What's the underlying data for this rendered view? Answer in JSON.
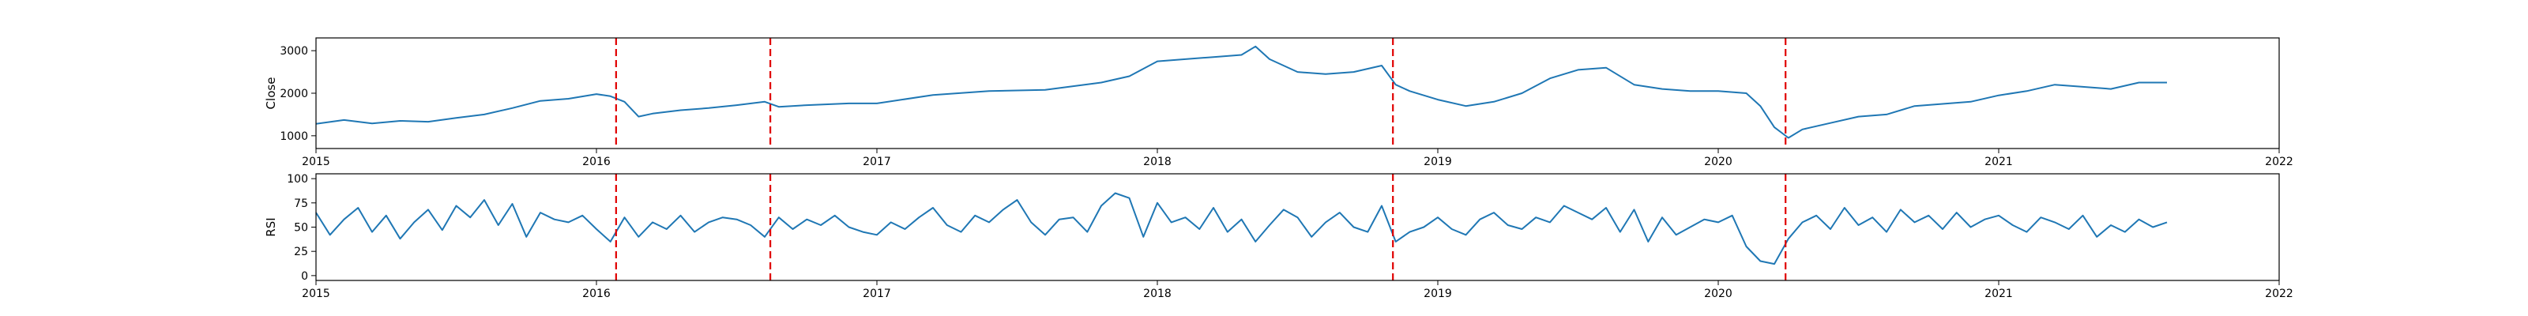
{
  "chart_data": [
    {
      "type": "line",
      "title": "",
      "xlabel": "",
      "ylabel": "Close",
      "xlim": [
        2015.0,
        2022.0
      ],
      "ylim": [
        700,
        3300
      ],
      "x_ticks": [
        2015,
        2016,
        2017,
        2018,
        2019,
        2020,
        2021,
        2022
      ],
      "x_tick_labels": [
        "2015",
        "2016",
        "2017",
        "2018",
        "2019",
        "2020",
        "2021",
        "2022"
      ],
      "y_ticks": [
        1000,
        2000,
        3000
      ],
      "y_tick_labels": [
        "1000",
        "2000",
        "3000"
      ],
      "grid": false,
      "event_lines": [
        2016.07,
        2016.62,
        2018.84,
        2020.24
      ],
      "event_color": "#e00000",
      "line_color": "#1f77b4",
      "series": [
        {
          "x": [
            2015.0,
            2015.1,
            2015.2,
            2015.3,
            2015.4,
            2015.5,
            2015.6,
            2015.7,
            2015.8,
            2015.9,
            2016.0,
            2016.05,
            2016.1,
            2016.15,
            2016.2,
            2016.3,
            2016.4,
            2016.5,
            2016.6,
            2016.65,
            2016.75,
            2016.9,
            2017.0,
            2017.2,
            2017.4,
            2017.6,
            2017.8,
            2017.9,
            2018.0,
            2018.1,
            2018.2,
            2018.3,
            2018.35,
            2018.4,
            2018.5,
            2018.6,
            2018.7,
            2018.8,
            2018.85,
            2018.9,
            2019.0,
            2019.1,
            2019.2,
            2019.3,
            2019.4,
            2019.5,
            2019.6,
            2019.7,
            2019.8,
            2019.9,
            2020.0,
            2020.1,
            2020.15,
            2020.2,
            2020.25,
            2020.3,
            2020.4,
            2020.5,
            2020.6,
            2020.7,
            2020.8,
            2020.9,
            2021.0,
            2021.1,
            2021.2,
            2021.3,
            2021.4,
            2021.5,
            2021.6
          ],
          "y": [
            1280,
            1370,
            1290,
            1350,
            1330,
            1420,
            1500,
            1650,
            1820,
            1870,
            1980,
            1930,
            1800,
            1450,
            1520,
            1600,
            1650,
            1720,
            1800,
            1680,
            1720,
            1760,
            1760,
            1960,
            2050,
            2080,
            2250,
            2400,
            2750,
            2800,
            2850,
            2900,
            3100,
            2800,
            2500,
            2450,
            2500,
            2650,
            2200,
            2050,
            1850,
            1700,
            1800,
            2000,
            2350,
            2550,
            2600,
            2200,
            2100,
            2050,
            2050,
            2000,
            1700,
            1200,
            950,
            1150,
            1300,
            1450,
            1500,
            1700,
            1750,
            1800,
            1950,
            2050,
            2200,
            2150,
            2100,
            2250,
            2250
          ]
        }
      ]
    },
    {
      "type": "line",
      "title": "",
      "xlabel": "",
      "ylabel": "RSI",
      "xlim": [
        2015.0,
        2022.0
      ],
      "ylim": [
        -5,
        105
      ],
      "x_ticks": [
        2015,
        2016,
        2017,
        2018,
        2019,
        2020,
        2021,
        2022
      ],
      "x_tick_labels": [
        "2015",
        "2016",
        "2017",
        "2018",
        "2019",
        "2020",
        "2021",
        "2022"
      ],
      "y_ticks": [
        0,
        25,
        50,
        75,
        100
      ],
      "y_tick_labels": [
        "0",
        "25",
        "50",
        "75",
        "100"
      ],
      "grid": false,
      "event_lines": [
        2016.07,
        2016.62,
        2018.84,
        2020.24
      ],
      "event_color": "#e00000",
      "line_color": "#1f77b4",
      "series": [
        {
          "x": [
            2015.0,
            2015.05,
            2015.1,
            2015.15,
            2015.2,
            2015.25,
            2015.3,
            2015.35,
            2015.4,
            2015.45,
            2015.5,
            2015.55,
            2015.6,
            2015.65,
            2015.7,
            2015.75,
            2015.8,
            2015.85,
            2015.9,
            2015.95,
            2016.0,
            2016.05,
            2016.1,
            2016.15,
            2016.2,
            2016.25,
            2016.3,
            2016.35,
            2016.4,
            2016.45,
            2016.5,
            2016.55,
            2016.6,
            2016.65,
            2016.7,
            2016.75,
            2016.8,
            2016.85,
            2016.9,
            2016.95,
            2017.0,
            2017.05,
            2017.1,
            2017.15,
            2017.2,
            2017.25,
            2017.3,
            2017.35,
            2017.4,
            2017.45,
            2017.5,
            2017.55,
            2017.6,
            2017.65,
            2017.7,
            2017.75,
            2017.8,
            2017.85,
            2017.9,
            2017.95,
            2018.0,
            2018.05,
            2018.1,
            2018.15,
            2018.2,
            2018.25,
            2018.3,
            2018.35,
            2018.4,
            2018.45,
            2018.5,
            2018.55,
            2018.6,
            2018.65,
            2018.7,
            2018.75,
            2018.8,
            2018.85,
            2018.9,
            2018.95,
            2019.0,
            2019.05,
            2019.1,
            2019.15,
            2019.2,
            2019.25,
            2019.3,
            2019.35,
            2019.4,
            2019.45,
            2019.5,
            2019.55,
            2019.6,
            2019.65,
            2019.7,
            2019.75,
            2019.8,
            2019.85,
            2019.9,
            2019.95,
            2020.0,
            2020.05,
            2020.1,
            2020.15,
            2020.2,
            2020.25,
            2020.3,
            2020.35,
            2020.4,
            2020.45,
            2020.5,
            2020.55,
            2020.6,
            2020.65,
            2020.7,
            2020.75,
            2020.8,
            2020.85,
            2020.9,
            2020.95,
            2021.0,
            2021.05,
            2021.1,
            2021.15,
            2021.2,
            2021.25,
            2021.3,
            2021.35,
            2021.4,
            2021.45,
            2021.5,
            2021.55,
            2021.6
          ],
          "y": [
            65,
            42,
            58,
            70,
            45,
            62,
            38,
            55,
            68,
            47,
            72,
            60,
            78,
            52,
            74,
            40,
            65,
            58,
            55,
            62,
            48,
            35,
            60,
            40,
            55,
            48,
            62,
            45,
            55,
            60,
            58,
            52,
            40,
            60,
            48,
            58,
            52,
            62,
            50,
            45,
            42,
            55,
            48,
            60,
            70,
            52,
            45,
            62,
            55,
            68,
            78,
            55,
            42,
            58,
            60,
            45,
            72,
            85,
            80,
            40,
            75,
            55,
            60,
            48,
            70,
            45,
            58,
            35,
            52,
            68,
            60,
            40,
            55,
            65,
            50,
            45,
            72,
            35,
            45,
            50,
            60,
            48,
            42,
            58,
            65,
            52,
            48,
            60,
            55,
            72,
            65,
            58,
            70,
            45,
            68,
            35,
            60,
            42,
            50,
            58,
            55,
            62,
            30,
            15,
            12,
            38,
            55,
            62,
            48,
            70,
            52,
            60,
            45,
            68,
            55,
            62,
            48,
            65,
            50,
            58,
            62,
            52,
            45,
            60,
            55,
            48,
            62,
            40,
            52,
            45,
            58,
            50,
            55
          ]
        }
      ]
    }
  ]
}
